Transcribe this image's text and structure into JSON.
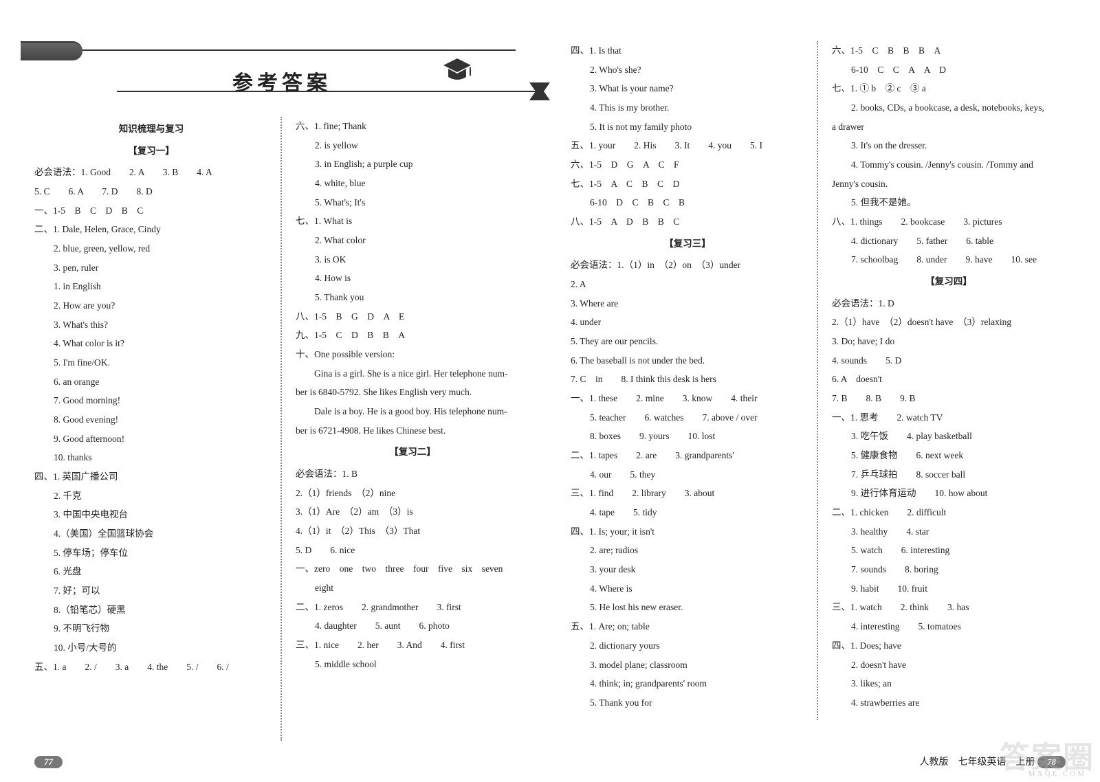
{
  "header": {
    "title": "参考答案"
  },
  "left_page": {
    "page_num": "77",
    "col1": {
      "section_title1": "知识梳理与复习",
      "section_title2": "【复习一】",
      "lines": [
        "必会语法：1. Good　　2. A　　3. B　　4. A",
        "5. C　　6. A　　7. D　　8. D",
        "一、1-5　B　C　D　B　C",
        "二、1. Dale, Helen, Grace, Cindy",
        "2. blue, green, yellow, red",
        "3. pen, ruler",
        "1. in English",
        "2. How are you?",
        "3. What's this?",
        "4. What color is it?",
        "5. I'm fine/OK.",
        "6. an orange",
        "7. Good morning!",
        "8. Good evening!",
        "9. Good afternoon!",
        "10. thanks",
        "四、1. 英国广播公司",
        "2. 千克",
        "3. 中国中央电视台",
        "4.（美国）全国篮球协会",
        "5. 停车场；停车位",
        "6. 光盘",
        "7. 好；可以",
        "8.（铅笔芯）硬黑",
        "9. 不明飞行物",
        "10. 小号/大号的",
        "五、1. a　　2. /　　3. a　　4. the　　5. /　　6. /"
      ],
      "indents": [
        0,
        0,
        0,
        0,
        1,
        1,
        1,
        1,
        1,
        1,
        1,
        1,
        1,
        1,
        1,
        1,
        0,
        1,
        1,
        1,
        1,
        1,
        1,
        1,
        1,
        1,
        0
      ]
    },
    "col2": {
      "lines": [
        "六、1. fine; Thank",
        "2. is yellow",
        "3. in English;  a purple cup",
        "4. white, blue",
        "5. What's;  It's",
        "七、1. What is",
        "2. What color",
        "3. is OK",
        "4. How is",
        "5. Thank you",
        "八、1-5　B　G　D　A　E",
        "九、1-5　C　D　B　B　A",
        "十、One possible version:",
        "　　Gina is a girl. She is a nice girl. Her telephone num-",
        "ber is 6840-5792. She likes English very much.",
        "　　Dale is a boy. He is a good boy. His telephone num-",
        "ber is 6721-4908. He likes Chinese best."
      ],
      "section_title": "【复习二】",
      "lines2": [
        "必会语法：1. B",
        "2.（1）friends　（2）nine",
        "3.（1）Are　（2）am　（3）is",
        "4.（1）it　（2）This　（3）That",
        "5. D　　6. nice",
        "一、zero　one　two　three　four　five　six　seven",
        "eight",
        "二、1. zeros　　2. grandmother　　3. first",
        "4. daughter　　5. aunt　　6. photo",
        "三、1. nice　　2. her　　3. And　　4. first",
        "5. middle school"
      ],
      "indents": [
        0,
        1,
        1,
        1,
        1,
        0,
        1,
        1,
        1,
        1,
        0,
        0,
        0,
        0,
        0,
        0,
        0
      ],
      "indents2": [
        0,
        0,
        0,
        0,
        0,
        0,
        1,
        0,
        1,
        0,
        1
      ]
    }
  },
  "right_page": {
    "page_num": "78",
    "footer_text": "人教版　七年级英语　上册",
    "col1": {
      "lines": [
        "四、1. Is that",
        "2. Who's she?",
        "3. What is your name?",
        "4. This is my brother.",
        "5. It is not my family photo",
        "五、1. your　　2. His　　3. It　　4. you　　5. I",
        "六、1-5　D　G　A　C　F",
        "七、1-5　A　C　B　C　D",
        "6-10　D　C　B　C　B",
        "八、1-5　A　D　B　B　C"
      ],
      "section_title": "【复习三】",
      "lines2": [
        "必会语法：1.（1）in　（2）on　（3）under",
        "2. A",
        "3. Where are",
        "4. under",
        "5. They are our pencils.",
        "6. The baseball is not under the bed.",
        "7. C　in　　8. I think this desk is hers",
        "一、1. these　　2. mine　　3. know　　4. their",
        "5. teacher　　6. watches　　7. above / over",
        "8. boxes　　9. yours　　10. lost",
        "二、1. tapes　　2. are　　3. grandparents'",
        "4. our　　5. they",
        "三、1. find　　2. library　　3. about",
        "4. tape　　5. tidy",
        "四、1. Is; your; it isn't",
        "2. are; radios",
        "3. your desk",
        "4. Where is",
        "5. He lost his new eraser.",
        "五、1. Are; on; table",
        "2. dictionary yours",
        "3. model plane;  classroom",
        "4. think; in; grandparents' room",
        "5. Thank you for"
      ],
      "indents": [
        0,
        1,
        1,
        1,
        1,
        0,
        0,
        0,
        1,
        0
      ],
      "indents2": [
        0,
        0,
        0,
        0,
        0,
        0,
        0,
        0,
        1,
        1,
        0,
        1,
        0,
        1,
        0,
        1,
        1,
        1,
        1,
        0,
        1,
        1,
        1,
        1
      ]
    },
    "col2": {
      "lines": [
        "六、1-5　C　B　B　B　A",
        "6-10　C　C　A　A　D",
        "七、1. ① b　② c　③ a",
        "2. books, CDs, a bookcase, a desk, notebooks, keys,",
        "a drawer",
        "3. It's on the dresser.",
        "4. Tommy's cousin. /Jenny's cousin. /Tommy and",
        "Jenny's cousin.",
        "5. 但我不是她。",
        "八、1. things　　2. bookcase　　3. pictures",
        "4. dictionary　　5. father　　6. table",
        "7. schoolbag　　8. under　　9. have　　10. see"
      ],
      "section_title": "【复习四】",
      "lines2": [
        "必会语法：1. D",
        "2.（1）have　（2）doesn't have　（3）relaxing",
        "3. Do; have; I do",
        "4. sounds　　5. D",
        "6. A　doesn't",
        "7. B　　8. B　　9. B",
        "一、1. 思考　　2. watch TV",
        "3. 吃午饭　　4. play basketball",
        "5. 健康食物　　6. next week",
        "7. 乒乓球拍　　8. soccer ball",
        "9. 进行体育运动　　10. how about",
        "二、1. chicken　　2. difficult",
        "3. healthy　　4. star",
        "5. watch　　6. interesting",
        "7. sounds　　8. boring",
        "9. habit　　10. fruit",
        "三、1. watch　　2. think　　3. has",
        "4. interesting　　5. tomatoes",
        "四、1. Does; have",
        "2. doesn't have",
        "3. likes; an",
        "4. strawberries are"
      ],
      "indents": [
        0,
        1,
        0,
        1,
        0,
        1,
        1,
        0,
        1,
        0,
        1,
        1
      ],
      "indents2": [
        0,
        0,
        0,
        0,
        0,
        0,
        0,
        1,
        1,
        1,
        1,
        0,
        1,
        1,
        1,
        1,
        0,
        1,
        0,
        1,
        1,
        1
      ]
    }
  },
  "watermark": {
    "main": "答案圈",
    "sub": "MXQE.COM"
  }
}
